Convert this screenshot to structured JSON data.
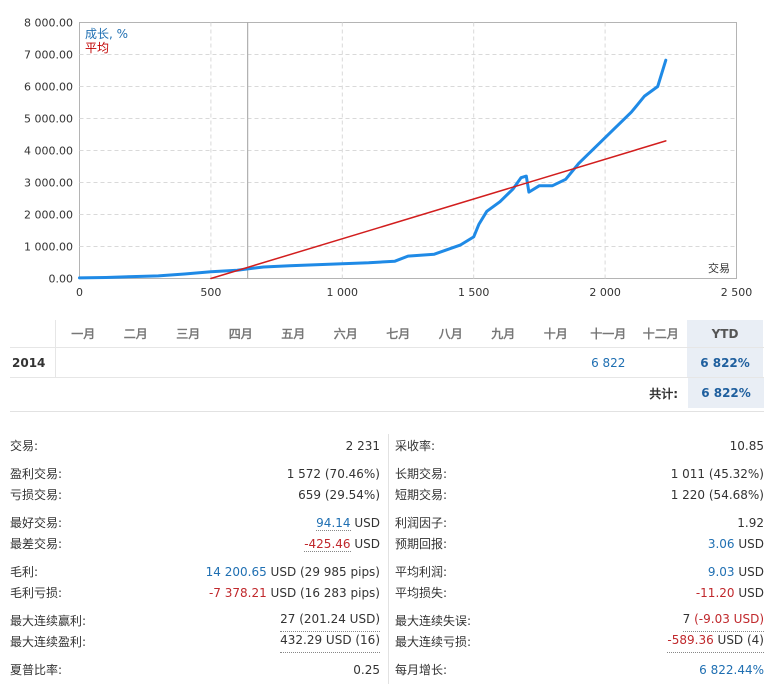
{
  "chart_data": {
    "type": "line",
    "legend": [
      {
        "label": "成长, %",
        "color": "#1f6fb2"
      },
      {
        "label": "平均",
        "color": "#c00000"
      }
    ],
    "xlabel": "交易",
    "x_ticks": [
      "0",
      "500",
      "1 000",
      "1 500",
      "2 000",
      "2 500"
    ],
    "y_ticks": [
      "0.00",
      "1 000.00",
      "2 000.00",
      "3 000.00",
      "4 000.00",
      "5 000.00",
      "6 000.00",
      "7 000.00",
      "8 000.00"
    ],
    "xlim": [
      0,
      2500
    ],
    "ylim": [
      0,
      8000
    ],
    "marker_x": 640,
    "series": [
      {
        "name": "成长, %",
        "color": "#1f8ae6",
        "points": [
          [
            0,
            20
          ],
          [
            100,
            30
          ],
          [
            200,
            60
          ],
          [
            300,
            80
          ],
          [
            400,
            140
          ],
          [
            500,
            210
          ],
          [
            600,
            260
          ],
          [
            640,
            300
          ],
          [
            700,
            360
          ],
          [
            800,
            400
          ],
          [
            900,
            430
          ],
          [
            1000,
            460
          ],
          [
            1100,
            490
          ],
          [
            1200,
            540
          ],
          [
            1250,
            700
          ],
          [
            1350,
            760
          ],
          [
            1450,
            1050
          ],
          [
            1500,
            1300
          ],
          [
            1520,
            1700
          ],
          [
            1550,
            2100
          ],
          [
            1600,
            2400
          ],
          [
            1650,
            2800
          ],
          [
            1680,
            3150
          ],
          [
            1700,
            3200
          ],
          [
            1710,
            2700
          ],
          [
            1750,
            2900
          ],
          [
            1800,
            2900
          ],
          [
            1850,
            3100
          ],
          [
            1900,
            3600
          ],
          [
            2000,
            4400
          ],
          [
            2050,
            4800
          ],
          [
            2100,
            5200
          ],
          [
            2150,
            5700
          ],
          [
            2200,
            6000
          ],
          [
            2231,
            6822
          ]
        ]
      },
      {
        "name": "平均",
        "color": "#d21e1e",
        "points": [
          [
            500,
            0
          ],
          [
            2231,
            4300
          ]
        ]
      }
    ]
  },
  "monthly": {
    "headers": [
      "一月",
      "二月",
      "三月",
      "四月",
      "五月",
      "六月",
      "七月",
      "八月",
      "九月",
      "十月",
      "十一月",
      "十二月",
      "YTD"
    ],
    "rows": [
      {
        "year": "2014",
        "values": [
          "",
          "",
          "",
          "",
          "",
          "",
          "",
          "",
          "",
          "",
          "6 822",
          ""
        ],
        "ytd": "6 822%"
      }
    ],
    "total_label": "共计:",
    "total_value": "6 822%"
  },
  "stats_left": {
    "trades_label": "交易:",
    "trades_value": "2 231",
    "profit_trades_label": "盈利交易:",
    "profit_trades_value": "1 572 (70.46%)",
    "loss_trades_label": "亏损交易:",
    "loss_trades_value": "659 (29.54%)",
    "best_trade_label": "最好交易:",
    "best_trade_value": "94.14",
    "best_trade_unit": " USD",
    "worst_trade_label": "最差交易:",
    "worst_trade_value": "-425.46",
    "worst_trade_unit": " USD",
    "gross_profit_label": "毛利:",
    "gross_profit_value": "14 200.65",
    "gross_profit_unit": " USD (29 985 pips)",
    "gross_loss_label": "毛利亏损:",
    "gross_loss_value": "-7 378.21",
    "gross_loss_unit": " USD (16 283 pips)",
    "max_consec_wins_label": "最大连续赢利:",
    "max_consec_wins_value": "27 (201.24 USD)",
    "max_consec_profit_label": "最大连续盈利:",
    "max_consec_profit_value": "432.29 USD (16)",
    "sharpe_label": "夏普比率:",
    "sharpe_value": "0.25"
  },
  "stats_right": {
    "recovery_label": "采收率:",
    "recovery_value": "10.85",
    "long_trades_label": "长期交易:",
    "long_trades_value": "1 011 (45.32%)",
    "short_trades_label": "短期交易:",
    "short_trades_value": "1 220 (54.68%)",
    "profit_factor_label": "利润因子:",
    "profit_factor_value": "1.92",
    "expected_payoff_label": "预期回报:",
    "expected_payoff_value": "3.06",
    "expected_payoff_unit": " USD",
    "avg_profit_label": "平均利润:",
    "avg_profit_value": "9.03",
    "avg_profit_unit": " USD",
    "avg_loss_label": "平均损失:",
    "avg_loss_value": "-11.20",
    "avg_loss_unit": " USD",
    "max_consec_losses_label": "最大连续失误:",
    "max_consec_losses_value": "7",
    "max_consec_losses_rest": " (-9.03 USD)",
    "max_consec_loss_label": "最大连续亏损:",
    "max_consec_loss_value": "-589.36",
    "max_consec_loss_unit": " USD (4)",
    "monthly_growth_label": "每月增长:",
    "monthly_growth_value": "6 822.44%"
  }
}
